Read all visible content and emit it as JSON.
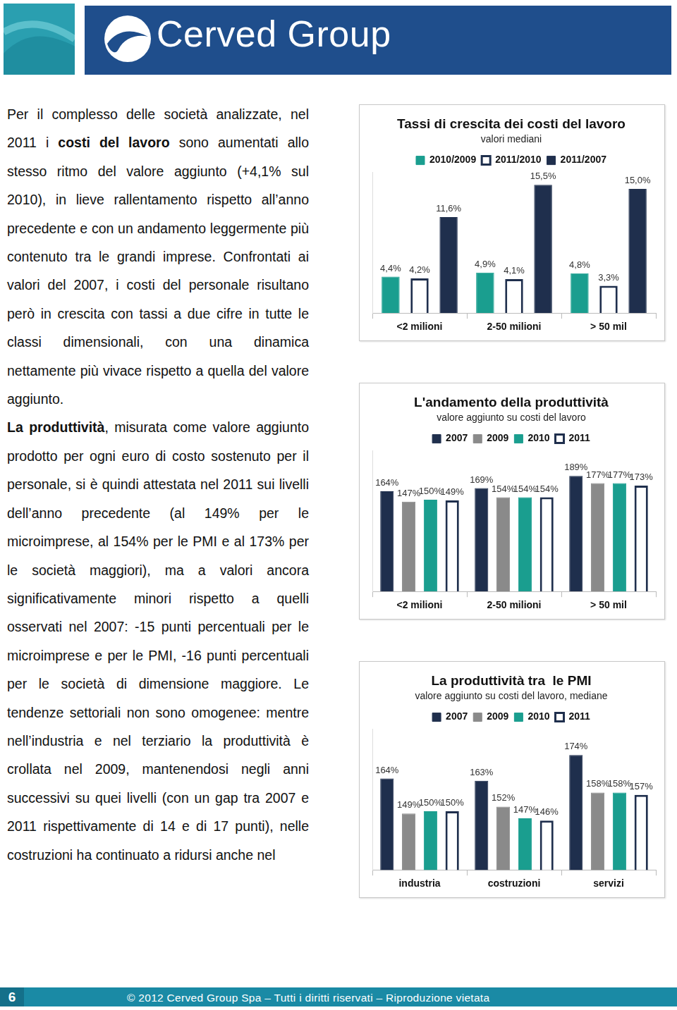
{
  "header": {
    "brand": "Cerved Group"
  },
  "text": {
    "paragraphs": [
      [
        {
          "text": "Per il complesso delle società analizzate, nel 2011 i ",
          "bold": false
        },
        {
          "text": "costi del lavoro",
          "bold": true
        },
        {
          "text": " sono aumentati allo stesso ritmo del valore aggiunto (+4,1% sul 2010), in lieve rallentamento rispetto all’anno precedente e con un andamento leggermente più contenuto tra le grandi imprese. Confrontati ai valori del 2007, i costi del personale risultano però in crescita con tassi a due cifre in tutte le classi dimensionali, con una dinamica nettamente più vivace rispetto a quella del valore aggiunto.",
          "bold": false
        }
      ],
      [
        {
          "text": "La produttività",
          "bold": true
        },
        {
          "text": ", misurata come valore aggiunto prodotto per ogni euro di costo sostenuto per il personale, si è quindi attestata nel 2011 sui livelli dell’anno precedente (al 149% per le microimprese, al 154% per le PMI e al 173% per le società maggiori), ma a valori ancora significativamente minori rispetto a quelli osservati nel 2007: -15 punti percentuali per le microimprese e per le PMI, -16 punti percentuali per le società di dimensione maggiore. Le tendenze settoriali non sono omogenee: mentre nell’industria e nel terziario la produttività è crollata nel 2009, mantenendosi negli anni successivi su quei livelli (con un gap tra 2007 e 2011 rispettivamente di 14 e di 17 punti), nelle costruzioni ha continuato a ridursi anche nel",
          "bold": false
        }
      ]
    ]
  },
  "chart_data": [
    {
      "type": "bar",
      "title": "Tassi di crescita dei costi del lavoro",
      "subtitle": "valori mediani",
      "categories": [
        "<2 milioni",
        "2-50 milioni",
        "> 50 mil"
      ],
      "series": [
        {
          "name": "2010/2009",
          "color": "#1a9e8f",
          "values": [
            4.4,
            4.9,
            4.8
          ],
          "value_labels": [
            "4,4%",
            "4,9%",
            "4,8%"
          ]
        },
        {
          "name": "2011/2010",
          "color": "#ffffff",
          "values": [
            4.2,
            4.1,
            3.3
          ],
          "value_labels": [
            "4,2%",
            "4,1%",
            "3,3%"
          ]
        },
        {
          "name": "2011/2007",
          "color": "#1f2f4d",
          "values": [
            11.6,
            15.5,
            15.0
          ],
          "value_labels": [
            "11,6%",
            "15,5%",
            "15,0%"
          ]
        }
      ],
      "ylim": [
        0,
        17
      ],
      "data_labels": true,
      "tick_labels": "x",
      "legend": "top",
      "grid": false
    },
    {
      "type": "bar",
      "title": "L'andamento della produttività",
      "subtitle": "valore aggiunto su costi del lavoro",
      "categories": [
        "<2 milioni",
        "2-50 milioni",
        "> 50 mil"
      ],
      "series": [
        {
          "name": "2007",
          "color": "#1f2f4d",
          "values": [
            164,
            169,
            189
          ],
          "value_labels": [
            "164%",
            "169%",
            "189%"
          ]
        },
        {
          "name": "2009",
          "color": "#8a8a8a",
          "values": [
            147,
            154,
            177
          ],
          "value_labels": [
            "147%",
            "154%",
            "177%"
          ]
        },
        {
          "name": "2010",
          "color": "#1a9e8f",
          "values": [
            150,
            154,
            177
          ],
          "value_labels": [
            "150%",
            "154%",
            "177%"
          ]
        },
        {
          "name": "2011",
          "color": "#ffffff",
          "values": [
            149,
            154,
            173
          ],
          "value_labels": [
            "149%",
            "154%",
            "173%"
          ]
        }
      ],
      "ylim": [
        0,
        230
      ],
      "data_labels": true,
      "tick_labels": "x",
      "legend": "top",
      "grid": false
    },
    {
      "type": "bar",
      "title": "La produttività tra  le PMI",
      "subtitle": "valore aggiunto su costi del lavoro, mediane",
      "categories": [
        "industria",
        "costruzioni",
        "servizi"
      ],
      "series": [
        {
          "name": "2007",
          "color": "#1f2f4d",
          "values": [
            164,
            163,
            174
          ],
          "value_labels": [
            "164%",
            "163%",
            "174%"
          ]
        },
        {
          "name": "2009",
          "color": "#8a8a8a",
          "values": [
            149,
            152,
            158
          ],
          "value_labels": [
            "149%",
            "152%",
            "158%"
          ]
        },
        {
          "name": "2010",
          "color": "#1a9e8f",
          "values": [
            150,
            147,
            158
          ],
          "value_labels": [
            "150%",
            "147%",
            "158%"
          ]
        },
        {
          "name": "2011",
          "color": "#ffffff",
          "values": [
            150,
            146,
            157
          ],
          "value_labels": [
            "150%",
            "146%",
            "157%"
          ]
        }
      ],
      "ylim": [
        125,
        185
      ],
      "data_labels": true,
      "tick_labels": "x",
      "legend": "top",
      "grid": false
    }
  ],
  "footer": {
    "page_number": 6,
    "copyright": "© 2012 Cerved Group Spa – Tutti i diritti riservati – Riproduzione vietata"
  }
}
